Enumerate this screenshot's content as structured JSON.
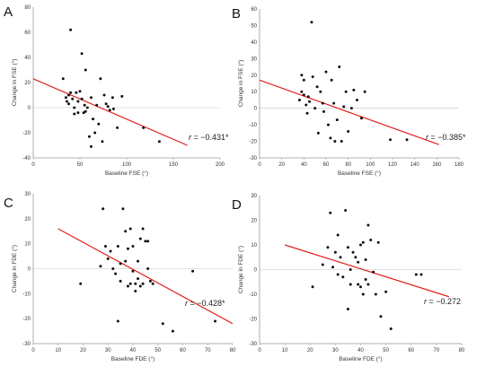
{
  "chart_data": [
    {
      "type": "scatter",
      "panel": "A",
      "xlabel": "Baseline FSE (°)",
      "ylabel": "Change in FSE (°)",
      "xlim": [
        0,
        200
      ],
      "ylim": [
        -40,
        80
      ],
      "xticks": [
        0,
        50,
        100,
        150,
        200
      ],
      "yticks": [
        -40,
        -20,
        0,
        20,
        40,
        60,
        80
      ],
      "annotation_r": "r",
      "annotation_value": " = −0.431*",
      "trendline": {
        "x": [
          0,
          165
        ],
        "y": [
          23,
          -30
        ]
      },
      "points": [
        [
          32,
          23
        ],
        [
          35,
          8
        ],
        [
          36,
          5
        ],
        [
          38,
          10
        ],
        [
          38,
          3
        ],
        [
          40,
          62
        ],
        [
          40,
          12
        ],
        [
          42,
          7
        ],
        [
          44,
          0
        ],
        [
          44,
          -5
        ],
        [
          46,
          12
        ],
        [
          48,
          -4
        ],
        [
          48,
          5
        ],
        [
          50,
          13
        ],
        [
          52,
          43
        ],
        [
          52,
          7
        ],
        [
          54,
          -4
        ],
        [
          55,
          2
        ],
        [
          56,
          30
        ],
        [
          56,
          -3
        ],
        [
          58,
          0
        ],
        [
          60,
          -23
        ],
        [
          62,
          -31
        ],
        [
          62,
          8
        ],
        [
          64,
          -9
        ],
        [
          66,
          -20
        ],
        [
          68,
          2
        ],
        [
          70,
          -13
        ],
        [
          72,
          23
        ],
        [
          74,
          -27
        ],
        [
          76,
          10
        ],
        [
          78,
          3
        ],
        [
          80,
          1
        ],
        [
          82,
          -2
        ],
        [
          85,
          8
        ],
        [
          86,
          -1
        ],
        [
          90,
          -16
        ],
        [
          95,
          9
        ],
        [
          118,
          -16
        ],
        [
          135,
          -27
        ]
      ]
    },
    {
      "type": "scatter",
      "panel": "B",
      "xlabel": "Baseline FSE (°)",
      "ylabel": "Change in FSE (°)",
      "xlim": [
        0,
        180
      ],
      "ylim": [
        -30,
        60
      ],
      "xticks": [
        0,
        20,
        40,
        60,
        80,
        100,
        120,
        140,
        160,
        180
      ],
      "yticks": [
        -30,
        -20,
        -10,
        0,
        10,
        20,
        30,
        40,
        50,
        60
      ],
      "annotation_r": "r",
      "annotation_value": " = −0.385*",
      "trendline": {
        "x": [
          0,
          162
        ],
        "y": [
          17,
          -22
        ]
      },
      "points": [
        [
          36,
          5
        ],
        [
          38,
          10
        ],
        [
          38,
          20
        ],
        [
          40,
          8
        ],
        [
          40,
          17
        ],
        [
          42,
          2
        ],
        [
          43,
          -3
        ],
        [
          44,
          7
        ],
        [
          45,
          4
        ],
        [
          47,
          52
        ],
        [
          48,
          19
        ],
        [
          50,
          0
        ],
        [
          52,
          13
        ],
        [
          53,
          -15
        ],
        [
          55,
          10
        ],
        [
          57,
          3
        ],
        [
          58,
          -2
        ],
        [
          60,
          22
        ],
        [
          62,
          -10
        ],
        [
          64,
          -18
        ],
        [
          65,
          17
        ],
        [
          67,
          3
        ],
        [
          68,
          -20
        ],
        [
          70,
          -7
        ],
        [
          72,
          25
        ],
        [
          74,
          -20
        ],
        [
          76,
          1
        ],
        [
          78,
          10
        ],
        [
          80,
          -14
        ],
        [
          83,
          0
        ],
        [
          85,
          11
        ],
        [
          88,
          5
        ],
        [
          92,
          -6
        ],
        [
          95,
          10
        ],
        [
          118,
          -19
        ],
        [
          133,
          -19
        ]
      ]
    },
    {
      "type": "scatter",
      "panel": "C",
      "xlabel": "Baseline FDE (°)",
      "ylabel": "Change in FDE (°)",
      "xlim": [
        0,
        80
      ],
      "ylim": [
        -30,
        30
      ],
      "xticks": [
        0,
        10,
        20,
        30,
        40,
        50,
        60,
        70,
        80
      ],
      "yticks": [
        -30,
        -20,
        -10,
        0,
        10,
        20,
        30
      ],
      "annotation_r": "r",
      "annotation_value": " = −0.428*",
      "trendline": {
        "x": [
          10,
          80
        ],
        "y": [
          16,
          -22
        ]
      },
      "points": [
        [
          19,
          -6
        ],
        [
          27,
          1
        ],
        [
          28,
          24
        ],
        [
          29,
          9
        ],
        [
          30,
          4
        ],
        [
          31,
          7
        ],
        [
          32,
          0
        ],
        [
          33,
          -2
        ],
        [
          34,
          9
        ],
        [
          34,
          -21
        ],
        [
          35,
          2
        ],
        [
          35,
          -5
        ],
        [
          36,
          24
        ],
        [
          37,
          15
        ],
        [
          37,
          3
        ],
        [
          38,
          -7
        ],
        [
          38,
          8
        ],
        [
          39,
          -6
        ],
        [
          39,
          16
        ],
        [
          40,
          -1
        ],
        [
          40,
          9
        ],
        [
          41,
          -6
        ],
        [
          41,
          -9
        ],
        [
          42,
          3
        ],
        [
          42,
          -4
        ],
        [
          43,
          12
        ],
        [
          43,
          -7
        ],
        [
          44,
          16
        ],
        [
          44,
          -6
        ],
        [
          45,
          11
        ],
        [
          46,
          11
        ],
        [
          46,
          0
        ],
        [
          47,
          -5
        ],
        [
          48,
          -6
        ],
        [
          52,
          -22
        ],
        [
          56,
          -25
        ],
        [
          64,
          -1
        ],
        [
          73,
          -21
        ]
      ]
    },
    {
      "type": "scatter",
      "panel": "D",
      "xlabel": "Baseline FDE (°)",
      "ylabel": "Change in FDE (°)",
      "xlim": [
        0,
        80
      ],
      "ylim": [
        -30,
        30
      ],
      "xticks": [
        0,
        10,
        20,
        30,
        40,
        50,
        60,
        70,
        80
      ],
      "yticks": [
        -30,
        -20,
        -10,
        0,
        10,
        20,
        30
      ],
      "annotation_r": "r",
      "annotation_value": " = −0.272",
      "trendline": {
        "x": [
          10,
          75
        ],
        "y": [
          10,
          -11
        ]
      },
      "points": [
        [
          21,
          -7
        ],
        [
          25,
          2
        ],
        [
          27,
          9
        ],
        [
          28,
          23
        ],
        [
          29,
          1
        ],
        [
          30,
          7
        ],
        [
          31,
          14
        ],
        [
          31,
          -2
        ],
        [
          32,
          5
        ],
        [
          33,
          -3
        ],
        [
          34,
          24
        ],
        [
          35,
          9
        ],
        [
          35,
          -16
        ],
        [
          36,
          0
        ],
        [
          36,
          -6
        ],
        [
          37,
          7
        ],
        [
          38,
          5
        ],
        [
          39,
          -6
        ],
        [
          39,
          3
        ],
        [
          40,
          -7
        ],
        [
          40,
          10
        ],
        [
          41,
          -10
        ],
        [
          41,
          11
        ],
        [
          42,
          -4
        ],
        [
          42,
          4
        ],
        [
          43,
          18
        ],
        [
          43,
          -6
        ],
        [
          44,
          12
        ],
        [
          45,
          -1
        ],
        [
          46,
          -10
        ],
        [
          47,
          11
        ],
        [
          48,
          -19
        ],
        [
          50,
          -9
        ],
        [
          52,
          -24
        ],
        [
          62,
          -2
        ],
        [
          64,
          -2
        ]
      ]
    }
  ]
}
